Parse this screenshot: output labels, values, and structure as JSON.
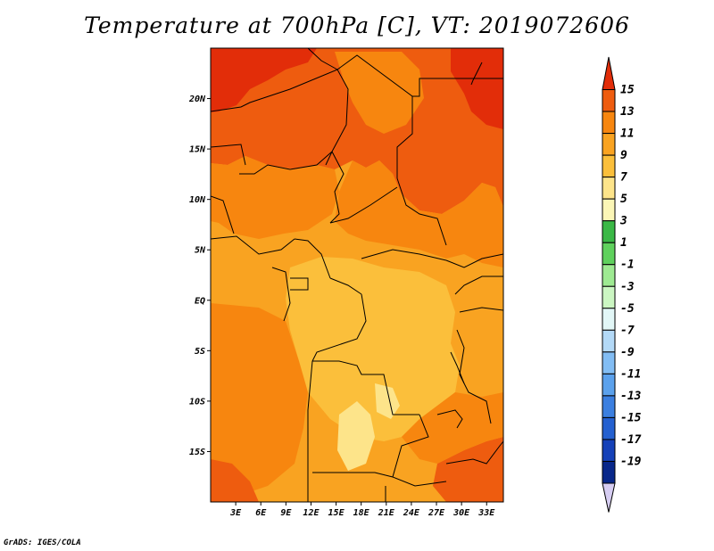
{
  "chart_data": {
    "type": "heatmap",
    "title": "Temperature at 700hPa [C], VT: 2019072606",
    "variable": "Temperature at 700hPa",
    "units": "C",
    "valid_time": "2019072606",
    "x_tick_labels": [
      "3E",
      "6E",
      "9E",
      "12E",
      "15E",
      "18E",
      "21E",
      "24E",
      "27E",
      "30E",
      "33E"
    ],
    "x_tick_values": [
      3,
      6,
      9,
      12,
      15,
      18,
      21,
      24,
      27,
      30,
      33
    ],
    "xlim": [
      0,
      35
    ],
    "y_tick_labels": [
      "20N",
      "15N",
      "10N",
      "5N",
      "EQ",
      "5S",
      "10S",
      "15S"
    ],
    "y_tick_values": [
      20,
      15,
      10,
      5,
      0,
      -5,
      -10,
      -15
    ],
    "ylim": [
      -20,
      25
    ],
    "colorbar_labels": [
      "15",
      "13",
      "11",
      "9",
      "7",
      "5",
      "3",
      "1",
      "-1",
      "-3",
      "-5",
      "-7",
      "-9",
      "-11",
      "-13",
      "-15",
      "-17",
      "-19"
    ],
    "colorbar_levels": [
      15,
      13,
      11,
      9,
      7,
      5,
      3,
      1,
      -1,
      -3,
      -5,
      -7,
      -9,
      -11,
      -13,
      -15,
      -17,
      -19
    ],
    "colorbar_colors": [
      "#e22d09",
      "#ee5c0f",
      "#f7860f",
      "#f9a321",
      "#fbbf3b",
      "#fde48a",
      "#fbf6b6",
      "#3ab846",
      "#5fd15d",
      "#9eea92",
      "#cbf6c2",
      "#e2f7f7",
      "#b3d9f7",
      "#82bdf4",
      "#5ba1ec",
      "#3b7fe0",
      "#2460d0",
      "#1541b8",
      "#08278a",
      "#d6cdf2"
    ],
    "legend_position": "right"
  },
  "credit": "GrADS: IGES/COLA",
  "colors": {
    "t15": "#e22d09",
    "t13": "#ee5c0f",
    "t11": "#f7860f",
    "t9": "#f9a321",
    "t7": "#fbbf3b",
    "t5": "#fde48a",
    "border": "#000000"
  }
}
